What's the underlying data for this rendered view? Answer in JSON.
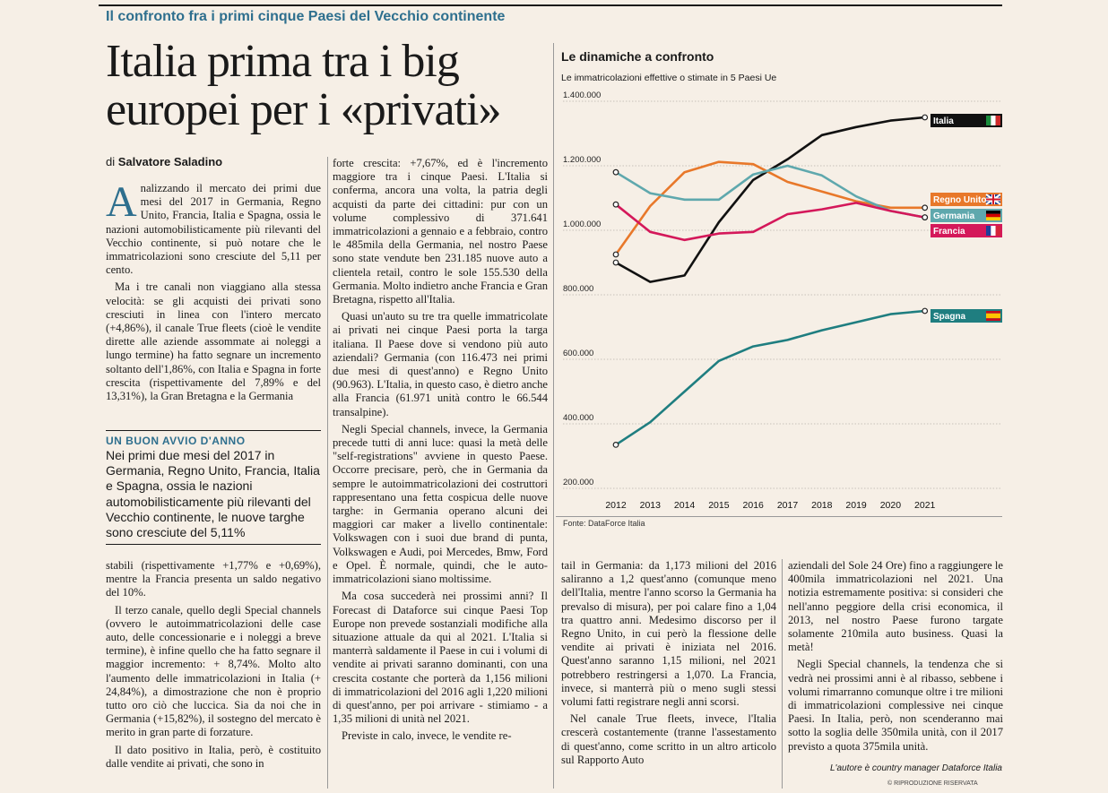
{
  "kicker": "Il confronto fra i primi cinque Paesi del Vecchio continente",
  "headline": "Italia prima tra i big europei per i «privati»",
  "byline": {
    "prefix": "di",
    "author": "Salvatore Saladino"
  },
  "col1": {
    "dropcap": "A",
    "p1": "nalizzando il mercato dei primi due mesi del 2017 in Germania, Regno Unito, Francia, Italia e Spagna, ossia le nazioni automobilisticamente più rilevanti del Vecchio continente, si può notare che le immatricolazioni sono cresciute del 5,11 per cento.",
    "p2": "Ma i tre canali non viaggiano alla stessa velocità: se gli acquisti dei privati sono cresciuti in linea con l'intero mercato (+4,86%), il canale True fleets (cioè le vendite dirette alle aziende assommate ai noleggi a lungo termine) ha fatto segnare un incremento soltanto dell'1,86%, con Italia e Spagna in forte crescita (rispettivamente del 7,89% e del 13,31%), la Gran Bretagna e la Germania"
  },
  "box": {
    "head": "UN BUON AVVIO D'ANNO",
    "text": "Nei primi due mesi del 2017 in Germania, Regno Unito, Francia, Italia e Spagna, ossia le nazioni automobilisticamente più rilevanti del Vecchio continente, le nuove targhe sono cresciute del 5,11%"
  },
  "col1b": {
    "p1": "stabili (rispettivamente +1,77% e +0,69%), mentre la Francia presenta un saldo negativo del 10%.",
    "p2": "Il terzo canale, quello degli Special channels (ovvero le autoimmatricolazioni delle case auto, delle concessionarie e i noleggi a breve termine), è infine quello che ha fatto segnare il maggior incremento: + 8,74%. Molto alto l'aumento delle immatricolazioni in Italia (+ 24,84%), a dimostrazione che non è proprio tutto oro ciò che luccica. Sia da noi che in Germania (+15,82%), il sostegno del mercato è merito in gran parte di forzature.",
    "p3": "Il dato positivo in Italia, però, è costituito dalle vendite ai privati, che sono in"
  },
  "col2": {
    "p1": "forte crescita: +7,67%, ed è l'incremento maggiore tra i cinque Paesi. L'Italia si conferma, ancora una volta, la patria degli acquisti da parte dei cittadini: pur con un volume complessivo di 371.641 immatricolazioni a gennaio e a febbraio, contro le 485mila della Germania, nel nostro Paese sono state vendute ben 231.185 nuove auto a clientela retail, contro le sole 155.530 della Germania. Molto indietro anche Francia e Gran Bretagna, rispetto all'Italia.",
    "p2": "Quasi un'auto su tre tra quelle immatricolate ai privati nei cinque Paesi porta la targa italiana. Il Paese dove si vendono più auto aziendali? Germania (con 116.473 nei primi due mesi di quest'anno) e Regno Unito (90.963). L'Italia, in questo caso, è dietro anche alla Francia (61.971 unità contro le 66.544 transalpine).",
    "p3": "Negli Special channels, invece, la Germania precede tutti di anni luce: quasi la metà delle \"self-registrations\" avviene in questo Paese. Occorre precisare, però, che in Germania da sempre le autoimmatricolazioni dei costruttori rappresentano una fetta cospicua delle nuove targhe: in Germania operano alcuni dei maggiori car maker a livello continentale: Volkswagen con i suoi due brand di punta, Volkswagen e Audi, poi Mercedes, Bmw, Ford e Opel. È normale, quindi, che le auto-immatricolazioni siano moltissime.",
    "p4": "Ma cosa succederà nei prossimi anni? Il Forecast di Dataforce sui cinque Paesi Top Europe non prevede sostanziali modifiche alla situazione attuale da qui al 2021. L'Italia si manterrà saldamente il Paese in cui i volumi di vendite ai privati saranno dominanti, con una crescita costante che porterà da 1,156 milioni di immatricolazioni del 2016 agli 1,220 milioni di quest'anno, per poi arrivare - stimiamo - a 1,35 milioni di unità nel 2021.",
    "p5": "Previste in calo, invece, le vendite re-"
  },
  "col3": {
    "p1": "tail in Germania: da 1,173 milioni del 2016 saliranno a 1,2 quest'anno (comunque meno dell'Italia, mentre l'anno scorso la Germania ha prevalso di misura), per poi calare fino a 1,04 tra quattro anni. Medesimo discorso per il Regno Unito, in cui però la flessione delle vendite ai privati è iniziata nel 2016. Quest'anno saranno 1,15 milioni, nel 2021 potrebbero restringersi a 1,070. La Francia, invece, si manterrà più o meno sugli stessi volumi fatti registrare negli anni scorsi.",
    "p2": "Nel canale True fleets, invece, l'Italia crescerà costantemente (tranne l'assestamento di quest'anno, come scritto in un altro articolo sul Rapporto Auto"
  },
  "col4": {
    "p1": "aziendali del Sole 24 Ore) fino a raggiungere le 400mila immatricolazioni nel 2021. Una notizia estremamente positiva: si consideri che nell'anno peggiore della crisi economica, il 2013, nel nostro Paese furono targate solamente 210mila auto business. Quasi la metà!",
    "p2": "Negli Special channels, la tendenza che si vedrà nei prossimi anni è al ribasso, sebbene i volumi rimarranno comunque oltre i tre milioni di immatricolazioni complessive nei cinque Paesi. In Italia, però, non scenderanno mai sotto la soglia delle 350mila unità, con il 2017 previsto a quota 375mila unità.",
    "signature": "L'autore è country manager Dataforce Italia",
    "ripro": "© RIPRODUZIONE RISERVATA"
  },
  "chart_title": "Le dinamiche a confronto",
  "chart_subtitle": "Le immatricolazioni effettive o stimate in 5 Paesi Ue",
  "chart_source": "Fonte: DataForce Italia",
  "chart_data": {
    "type": "line",
    "title": "Le dinamiche a confronto",
    "subtitle": "Le immatricolazioni effettive o stimate in 5 Paesi Ue",
    "categories": [
      "2012",
      "2013",
      "2014",
      "2015",
      "2016",
      "2017",
      "2018",
      "2019",
      "2020",
      "2021"
    ],
    "ylim": [
      200000,
      1400000
    ],
    "yticks": [
      200000,
      400000,
      600000,
      800000,
      1000000,
      1200000,
      1400000
    ],
    "ytick_labels": [
      "200.000",
      "400.000",
      "600.000",
      "800.000",
      "1.000.000",
      "1.200.000",
      "1.400.000"
    ],
    "grid": "horizontal",
    "series": [
      {
        "name": "Italia",
        "color": "#111111",
        "values": [
          900000,
          840000,
          860000,
          1025000,
          1156000,
          1220000,
          1295000,
          1320000,
          1340000,
          1350000
        ]
      },
      {
        "name": "Regno Unito",
        "color": "#e8782a",
        "values": [
          925000,
          1075000,
          1180000,
          1212000,
          1205000,
          1150000,
          1120000,
          1090000,
          1070000,
          1070000
        ]
      },
      {
        "name": "Germania",
        "color": "#5fa8ad",
        "values": [
          1180000,
          1115000,
          1095000,
          1095000,
          1173000,
          1200000,
          1170000,
          1105000,
          1060000,
          1040000
        ]
      },
      {
        "name": "Francia",
        "color": "#d4185a",
        "values": [
          1080000,
          995000,
          970000,
          990000,
          995000,
          1050000,
          1065000,
          1085000,
          1060000,
          1040000
        ]
      },
      {
        "name": "Spagna",
        "color": "#1f7e80",
        "values": [
          335000,
          405000,
          500000,
          595000,
          640000,
          660000,
          690000,
          715000,
          740000,
          750000
        ]
      }
    ]
  }
}
